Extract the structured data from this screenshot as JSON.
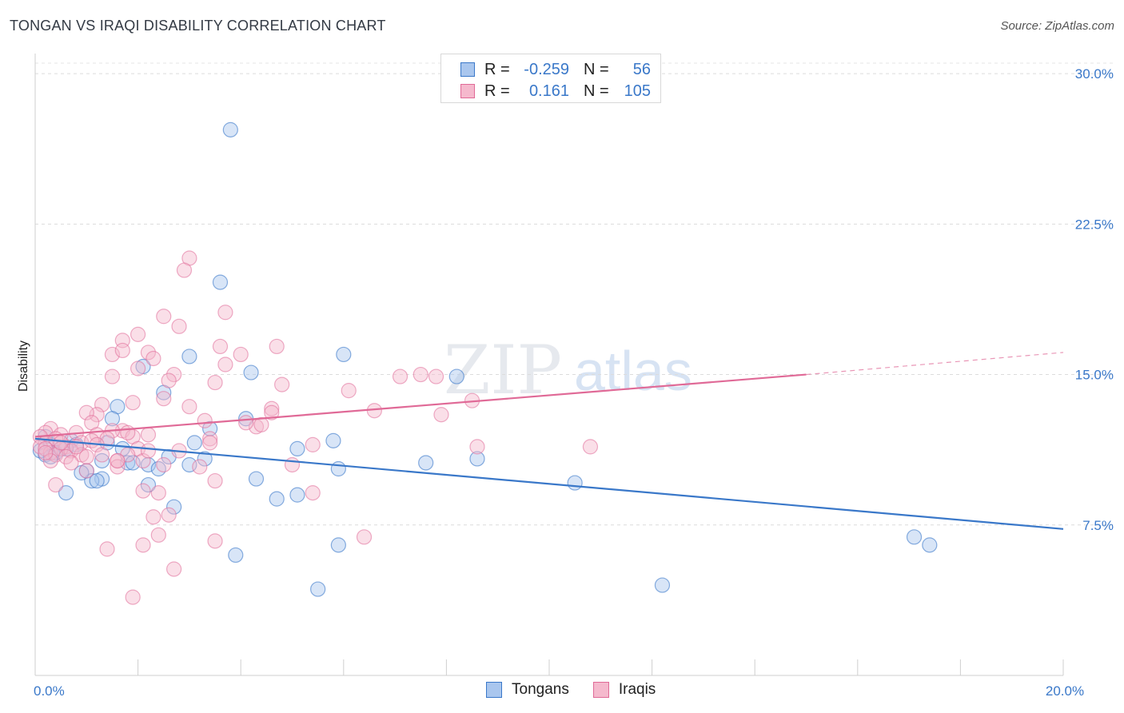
{
  "header": {
    "title": "TONGAN VS IRAQI DISABILITY CORRELATION CHART",
    "source": "Source: ZipAtlas.com"
  },
  "watermark": {
    "zip": "ZIP",
    "atlas": "atlas"
  },
  "legend": {
    "rows": [
      {
        "r_label": "R =",
        "r_value": "-0.259",
        "n_label": "N =",
        "n_value": "56"
      },
      {
        "r_label": "R =",
        "r_value": "0.161",
        "n_label": "N =",
        "n_value": "105"
      }
    ],
    "bottom": [
      "Tongans",
      "Iraqis"
    ]
  },
  "chart_data": {
    "type": "scatter",
    "title": "TONGAN VS IRAQI DISABILITY CORRELATION CHART",
    "xlabel": "",
    "ylabel": "Disability",
    "xlim": [
      0,
      20
    ],
    "ylim": [
      0,
      31
    ],
    "x_ticks": [
      0,
      20
    ],
    "x_tick_labels": [
      "0.0%",
      "20.0%"
    ],
    "y_ticks": [
      7.5,
      15,
      22.5,
      30
    ],
    "y_tick_labels": [
      "7.5%",
      "15.0%",
      "22.5%",
      "30.0%"
    ],
    "colors": {
      "tongans": "#3a78c9",
      "iraqis": "#e06a97",
      "tongans_fill": "#a9c6ee",
      "iraqis_fill": "#f5b9cd"
    },
    "series": [
      {
        "name": "Tongans",
        "r": -0.259,
        "n": 56,
        "trend": {
          "x0": 0,
          "y0": 11.8,
          "x1": 20,
          "y1": 7.3
        },
        "points": [
          [
            3.8,
            27.2
          ],
          [
            3.6,
            19.6
          ],
          [
            6.0,
            16.0
          ],
          [
            2.1,
            15.4
          ],
          [
            8.2,
            14.9
          ],
          [
            3.0,
            15.9
          ],
          [
            4.2,
            15.1
          ],
          [
            2.5,
            14.1
          ],
          [
            1.6,
            13.4
          ],
          [
            1.5,
            12.8
          ],
          [
            3.4,
            12.3
          ],
          [
            4.1,
            12.8
          ],
          [
            0.2,
            11.9
          ],
          [
            0.3,
            11.5
          ],
          [
            0.5,
            11.3
          ],
          [
            0.1,
            11.2
          ],
          [
            0.7,
            11.7
          ],
          [
            0.8,
            11.5
          ],
          [
            0.2,
            11.0
          ],
          [
            0.4,
            11.1
          ],
          [
            0.6,
            11.3
          ],
          [
            1.4,
            11.6
          ],
          [
            1.7,
            11.3
          ],
          [
            3.1,
            11.6
          ],
          [
            5.1,
            11.3
          ],
          [
            5.8,
            11.7
          ],
          [
            0.3,
            10.9
          ],
          [
            1.3,
            10.7
          ],
          [
            1.8,
            10.6
          ],
          [
            2.6,
            10.9
          ],
          [
            3.3,
            10.8
          ],
          [
            2.2,
            10.5
          ],
          [
            1.0,
            10.2
          ],
          [
            1.3,
            9.8
          ],
          [
            1.1,
            9.7
          ],
          [
            1.2,
            9.7
          ],
          [
            0.9,
            10.1
          ],
          [
            1.9,
            10.6
          ],
          [
            2.4,
            10.3
          ],
          [
            3.0,
            10.5
          ],
          [
            4.3,
            9.8
          ],
          [
            5.9,
            10.3
          ],
          [
            7.6,
            10.6
          ],
          [
            8.6,
            10.8
          ],
          [
            10.5,
            9.6
          ],
          [
            4.7,
            8.8
          ],
          [
            5.1,
            9.0
          ],
          [
            2.2,
            9.5
          ],
          [
            0.6,
            9.1
          ],
          [
            2.7,
            8.4
          ],
          [
            3.9,
            6.0
          ],
          [
            5.9,
            6.5
          ],
          [
            5.5,
            4.3
          ],
          [
            12.2,
            4.5
          ],
          [
            17.1,
            6.9
          ],
          [
            17.4,
            6.5
          ]
        ]
      },
      {
        "name": "Iraqis",
        "r": 0.161,
        "n": 105,
        "trend": {
          "x0": 0,
          "y0": 11.9,
          "x1": 15.0,
          "y1": 15.0,
          "dash_x1": 20,
          "dash_y1": 16.1
        },
        "points": [
          [
            3.0,
            20.8
          ],
          [
            2.9,
            20.2
          ],
          [
            3.7,
            18.1
          ],
          [
            2.5,
            17.9
          ],
          [
            2.8,
            17.4
          ],
          [
            2.0,
            17.0
          ],
          [
            1.7,
            16.7
          ],
          [
            1.5,
            16.0
          ],
          [
            1.7,
            16.2
          ],
          [
            3.6,
            16.4
          ],
          [
            4.0,
            16.0
          ],
          [
            4.7,
            16.4
          ],
          [
            2.2,
            16.1
          ],
          [
            2.3,
            15.8
          ],
          [
            2.0,
            15.3
          ],
          [
            3.7,
            15.5
          ],
          [
            2.7,
            15.0
          ],
          [
            1.5,
            14.9
          ],
          [
            2.6,
            14.7
          ],
          [
            3.5,
            14.6
          ],
          [
            4.8,
            14.5
          ],
          [
            7.1,
            14.9
          ],
          [
            7.5,
            15.0
          ],
          [
            7.8,
            14.9
          ],
          [
            6.1,
            14.2
          ],
          [
            2.5,
            13.8
          ],
          [
            1.9,
            13.6
          ],
          [
            1.3,
            13.5
          ],
          [
            1.2,
            13.0
          ],
          [
            1.0,
            13.1
          ],
          [
            3.0,
            13.4
          ],
          [
            4.6,
            13.3
          ],
          [
            6.6,
            13.2
          ],
          [
            8.5,
            13.7
          ],
          [
            7.9,
            13.0
          ],
          [
            1.1,
            12.6
          ],
          [
            1.7,
            12.2
          ],
          [
            0.3,
            12.3
          ],
          [
            0.2,
            12.1
          ],
          [
            0.5,
            12.0
          ],
          [
            0.8,
            12.1
          ],
          [
            1.2,
            12.0
          ],
          [
            1.5,
            12.2
          ],
          [
            2.2,
            12.0
          ],
          [
            3.4,
            11.8
          ],
          [
            4.3,
            12.4
          ],
          [
            4.4,
            12.5
          ],
          [
            0.1,
            11.9
          ],
          [
            0.2,
            11.6
          ],
          [
            0.4,
            11.8
          ],
          [
            0.6,
            11.4
          ],
          [
            0.9,
            11.6
          ],
          [
            1.1,
            11.7
          ],
          [
            1.4,
            11.8
          ],
          [
            1.9,
            11.9
          ],
          [
            0.1,
            11.4
          ],
          [
            0.3,
            11.1
          ],
          [
            0.5,
            11.3
          ],
          [
            0.7,
            11.2
          ],
          [
            0.9,
            11.0
          ],
          [
            1.2,
            11.5
          ],
          [
            2.0,
            11.3
          ],
          [
            3.4,
            11.6
          ],
          [
            5.4,
            11.5
          ],
          [
            8.6,
            11.4
          ],
          [
            10.8,
            11.4
          ],
          [
            0.2,
            11.3
          ],
          [
            0.4,
            11.0
          ],
          [
            0.6,
            10.9
          ],
          [
            0.3,
            10.7
          ],
          [
            0.7,
            10.6
          ],
          [
            1.6,
            10.7
          ],
          [
            2.1,
            10.7
          ],
          [
            3.2,
            10.4
          ],
          [
            5.0,
            10.5
          ],
          [
            1.0,
            10.2
          ],
          [
            1.6,
            10.4
          ],
          [
            1.8,
            11.0
          ],
          [
            0.4,
            9.5
          ],
          [
            3.5,
            9.7
          ],
          [
            5.4,
            9.1
          ],
          [
            2.1,
            9.2
          ],
          [
            2.4,
            9.1
          ],
          [
            2.6,
            8.0
          ],
          [
            2.3,
            7.9
          ],
          [
            2.4,
            7.0
          ],
          [
            2.1,
            6.5
          ],
          [
            3.5,
            6.7
          ],
          [
            6.4,
            6.9
          ],
          [
            1.4,
            6.3
          ],
          [
            2.7,
            5.3
          ],
          [
            1.9,
            3.9
          ],
          [
            1.6,
            10.7
          ],
          [
            2.2,
            11.2
          ],
          [
            0.8,
            11.4
          ],
          [
            1.0,
            10.9
          ],
          [
            4.6,
            13.1
          ],
          [
            3.3,
            12.7
          ],
          [
            2.5,
            10.5
          ],
          [
            1.8,
            12.1
          ],
          [
            0.5,
            11.6
          ],
          [
            0.2,
            11.1
          ],
          [
            1.3,
            11.0
          ],
          [
            2.8,
            11.2
          ],
          [
            4.1,
            12.6
          ]
        ]
      }
    ]
  }
}
